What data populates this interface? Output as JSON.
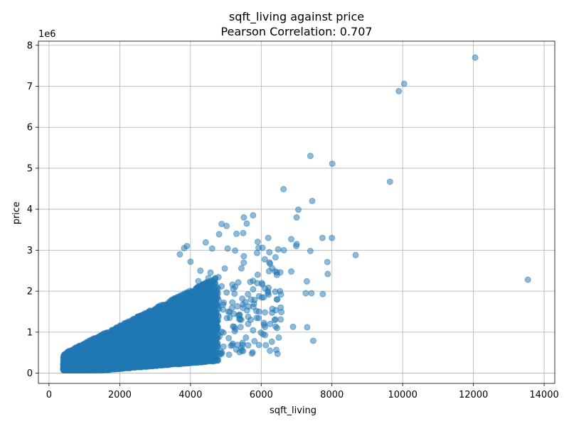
{
  "chart_data": {
    "type": "scatter",
    "title": "sqft_living against price",
    "subtitle": "Pearson Correlation: 0.707",
    "xlabel": "sqft_living",
    "ylabel": "price",
    "y_offset_label": "1e6",
    "xlim": [
      -300,
      14300
    ],
    "ylim": [
      -250000,
      8100000
    ],
    "x_ticks": [
      0,
      2000,
      4000,
      6000,
      8000,
      10000,
      12000,
      14000
    ],
    "x_tick_labels": [
      "0",
      "2000",
      "4000",
      "6000",
      "8000",
      "10000",
      "12000",
      "14000"
    ],
    "y_ticks": [
      0,
      1000000,
      2000000,
      3000000,
      4000000,
      5000000,
      6000000,
      7000000,
      8000000
    ],
    "y_tick_labels": [
      "0",
      "1",
      "2",
      "3",
      "4",
      "5",
      "6",
      "7",
      "8"
    ],
    "grid": true,
    "marker_color": "#1f77b4",
    "marker_alpha": 0.5,
    "dense_cluster_points": 20000,
    "points": [
      [
        12050,
        7700000
      ],
      [
        10040,
        7060000
      ],
      [
        9890,
        6880000
      ],
      [
        13540,
        2280000
      ],
      [
        9640,
        4670000
      ],
      [
        8010,
        5110000
      ],
      [
        7390,
        5300000
      ],
      [
        6630,
        4490000
      ],
      [
        7440,
        4200000
      ],
      [
        7050,
        3990000
      ],
      [
        7000,
        3800000
      ],
      [
        5770,
        3850000
      ],
      [
        5510,
        3800000
      ],
      [
        7730,
        3300000
      ],
      [
        8000,
        3300000
      ],
      [
        6200,
        3300000
      ],
      [
        6850,
        3270000
      ],
      [
        7000,
        3150000
      ],
      [
        6990,
        3100000
      ],
      [
        7390,
        2980000
      ],
      [
        6640,
        3000000
      ],
      [
        6230,
        2950000
      ],
      [
        8670,
        2880000
      ],
      [
        7870,
        2710000
      ],
      [
        7880,
        2420000
      ],
      [
        6850,
        2480000
      ],
      [
        6440,
        2460000
      ],
      [
        6540,
        2460000
      ],
      [
        7290,
        2240000
      ],
      [
        7260,
        1950000
      ],
      [
        7420,
        1950000
      ],
      [
        7740,
        1930000
      ],
      [
        6530,
        2000000
      ],
      [
        6560,
        1920000
      ],
      [
        6440,
        1800000
      ],
      [
        6190,
        1960000
      ],
      [
        6020,
        2200000
      ],
      [
        5900,
        2400000
      ],
      [
        6550,
        1600000
      ],
      [
        6570,
        1490000
      ],
      [
        6550,
        1310000
      ],
      [
        6400,
        1310000
      ],
      [
        6250,
        1200000
      ],
      [
        6080,
        1180000
      ],
      [
        6050,
        950000
      ],
      [
        6900,
        1130000
      ],
      [
        7300,
        1120000
      ],
      [
        7470,
        790000
      ],
      [
        5810,
        780000
      ],
      [
        5450,
        550000
      ],
      [
        5440,
        610000
      ],
      [
        5090,
        450000
      ],
      [
        4890,
        500000
      ],
      [
        5330,
        690000
      ],
      [
        5050,
        3040000
      ],
      [
        4880,
        3640000
      ],
      [
        5020,
        3590000
      ],
      [
        4610,
        3040000
      ],
      [
        3900,
        3100000
      ],
      [
        4430,
        3190000
      ],
      [
        3820,
        3050000
      ],
      [
        3700,
        2900000
      ],
      [
        5490,
        3420000
      ],
      [
        5300,
        3400000
      ],
      [
        5590,
        3650000
      ],
      [
        4810,
        3390000
      ],
      [
        4000,
        2720000
      ],
      [
        4280,
        2500000
      ],
      [
        5440,
        2560000
      ]
    ]
  }
}
